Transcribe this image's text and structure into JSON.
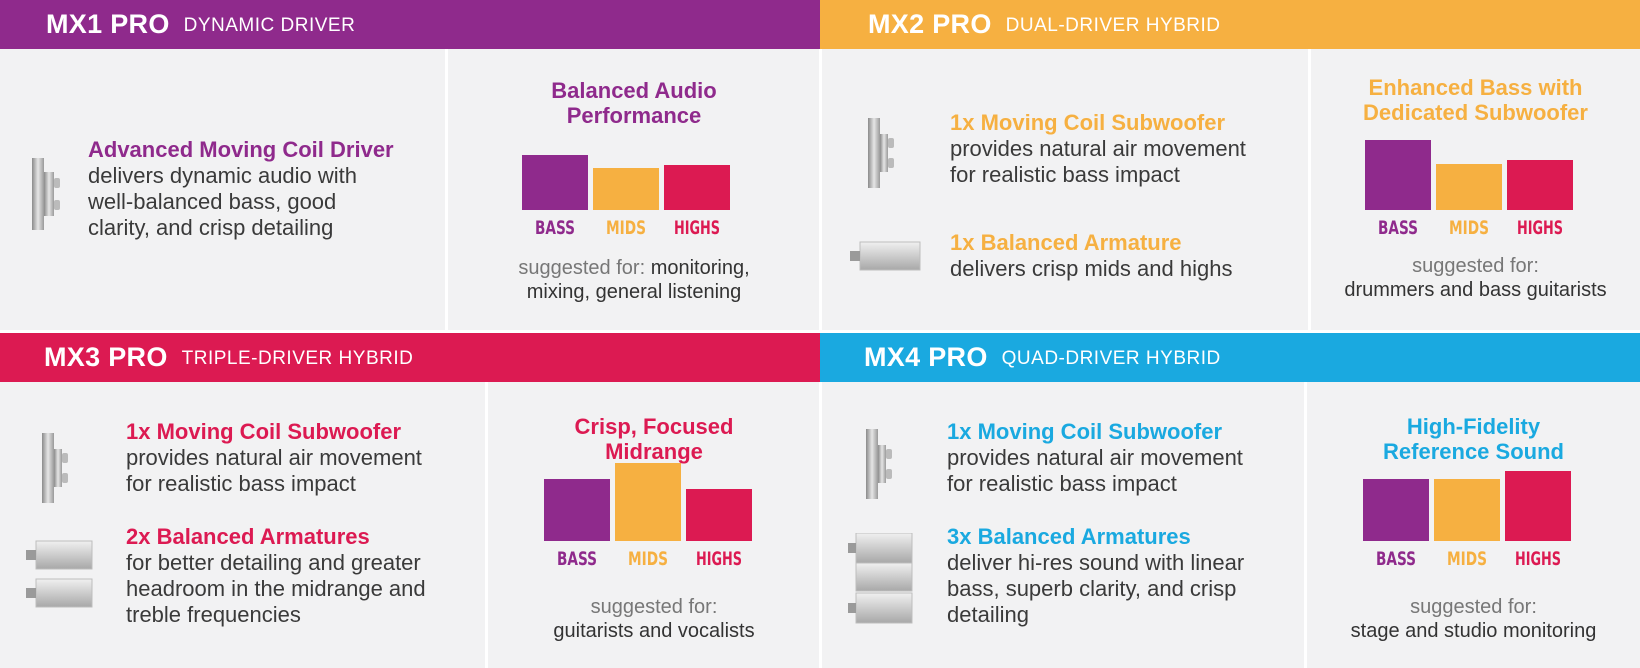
{
  "colors": {
    "bass": "#8f2a8c",
    "mids": "#f6b041",
    "highs": "#dc1a52",
    "purple": "#8f2a8c",
    "orange": "#f6b041",
    "red": "#dc1a52",
    "blue": "#1aa9e0"
  },
  "panels": [
    {
      "model": "MX1 PRO",
      "type": "DYNAMIC DRIVER",
      "accent": "#8f2a8c",
      "drivers": [
        {
          "icon": "moving-coil-driver-icon",
          "title": "Advanced Moving Coil Driver",
          "desc_lines": [
            "delivers dynamic audio with",
            "well-balanced bass, good",
            "clarity, and crisp detailing"
          ]
        }
      ],
      "chart_title_lines": [
        "Balanced Audio",
        "Performance"
      ],
      "suggest_prefix": "suggested for:",
      "suggest_lines": [
        "monitoring,",
        "mixing, general listening"
      ]
    },
    {
      "model": "MX2 PRO",
      "type": "DUAL-DRIVER HYBRID",
      "accent": "#f6b041",
      "drivers": [
        {
          "icon": "moving-coil-subwoofer-icon",
          "title": "1x Moving Coil Subwoofer",
          "desc_lines": [
            "provides natural air movement",
            "for realistic bass impact"
          ]
        },
        {
          "icon": "balanced-armature-icon",
          "title": "1x Balanced Armature",
          "desc_lines": [
            "delivers crisp mids and highs"
          ]
        }
      ],
      "chart_title_lines": [
        "Enhanced Bass with",
        "Dedicated Subwoofer"
      ],
      "suggest_prefix": "suggested for:",
      "suggest_lines": [
        "drummers and bass guitarists"
      ]
    },
    {
      "model": "MX3 PRO",
      "type": "TRIPLE-DRIVER HYBRID",
      "accent": "#dc1a52",
      "drivers": [
        {
          "icon": "moving-coil-subwoofer-icon",
          "title": "1x Moving Coil Subwoofer",
          "desc_lines": [
            "provides natural air movement",
            "for realistic bass impact"
          ]
        },
        {
          "icon": "balanced-armatures-icon",
          "title": "2x Balanced Armatures",
          "desc_lines": [
            "for better detailing and greater",
            "headroom in the midrange and",
            "treble frequencies"
          ]
        }
      ],
      "chart_title_lines": [
        "Crisp, Focused",
        "Midrange"
      ],
      "suggest_prefix": "suggested for:",
      "suggest_lines": [
        "guitarists and vocalists"
      ]
    },
    {
      "model": "MX4 PRO",
      "type": "QUAD-DRIVER HYBRID",
      "accent": "#1aa9e0",
      "drivers": [
        {
          "icon": "moving-coil-subwoofer-icon",
          "title": "1x Moving Coil Subwoofer",
          "desc_lines": [
            "provides natural air movement",
            "for realistic bass impact"
          ]
        },
        {
          "icon": "balanced-armatures-icon",
          "title": "3x Balanced Armatures",
          "desc_lines": [
            "deliver hi-res sound with linear",
            "bass, superb clarity, and crisp",
            "detailing"
          ]
        }
      ],
      "chart_title_lines": [
        "High-Fidelity",
        "Reference Sound"
      ],
      "suggest_prefix": "suggested for:",
      "suggest_lines": [
        "stage and studio monitoring"
      ]
    }
  ],
  "chart_data": [
    {
      "type": "bar",
      "title": "Balanced Audio Performance",
      "categories": [
        "BASS",
        "MIDS",
        "HIGHS"
      ],
      "values": [
        55,
        42,
        45
      ],
      "ylim": [
        0,
        80
      ]
    },
    {
      "type": "bar",
      "title": "Enhanced Bass with Dedicated Subwoofer",
      "categories": [
        "BASS",
        "MIDS",
        "HIGHS"
      ],
      "values": [
        70,
        46,
        50
      ],
      "ylim": [
        0,
        80
      ]
    },
    {
      "type": "bar",
      "title": "Crisp, Focused Midrange",
      "categories": [
        "BASS",
        "MIDS",
        "HIGHS"
      ],
      "values": [
        62,
        78,
        52
      ],
      "ylim": [
        0,
        80
      ]
    },
    {
      "type": "bar",
      "title": "High-Fidelity Reference Sound",
      "categories": [
        "BASS",
        "MIDS",
        "HIGHS"
      ],
      "values": [
        62,
        62,
        70
      ],
      "ylim": [
        0,
        80
      ]
    }
  ]
}
